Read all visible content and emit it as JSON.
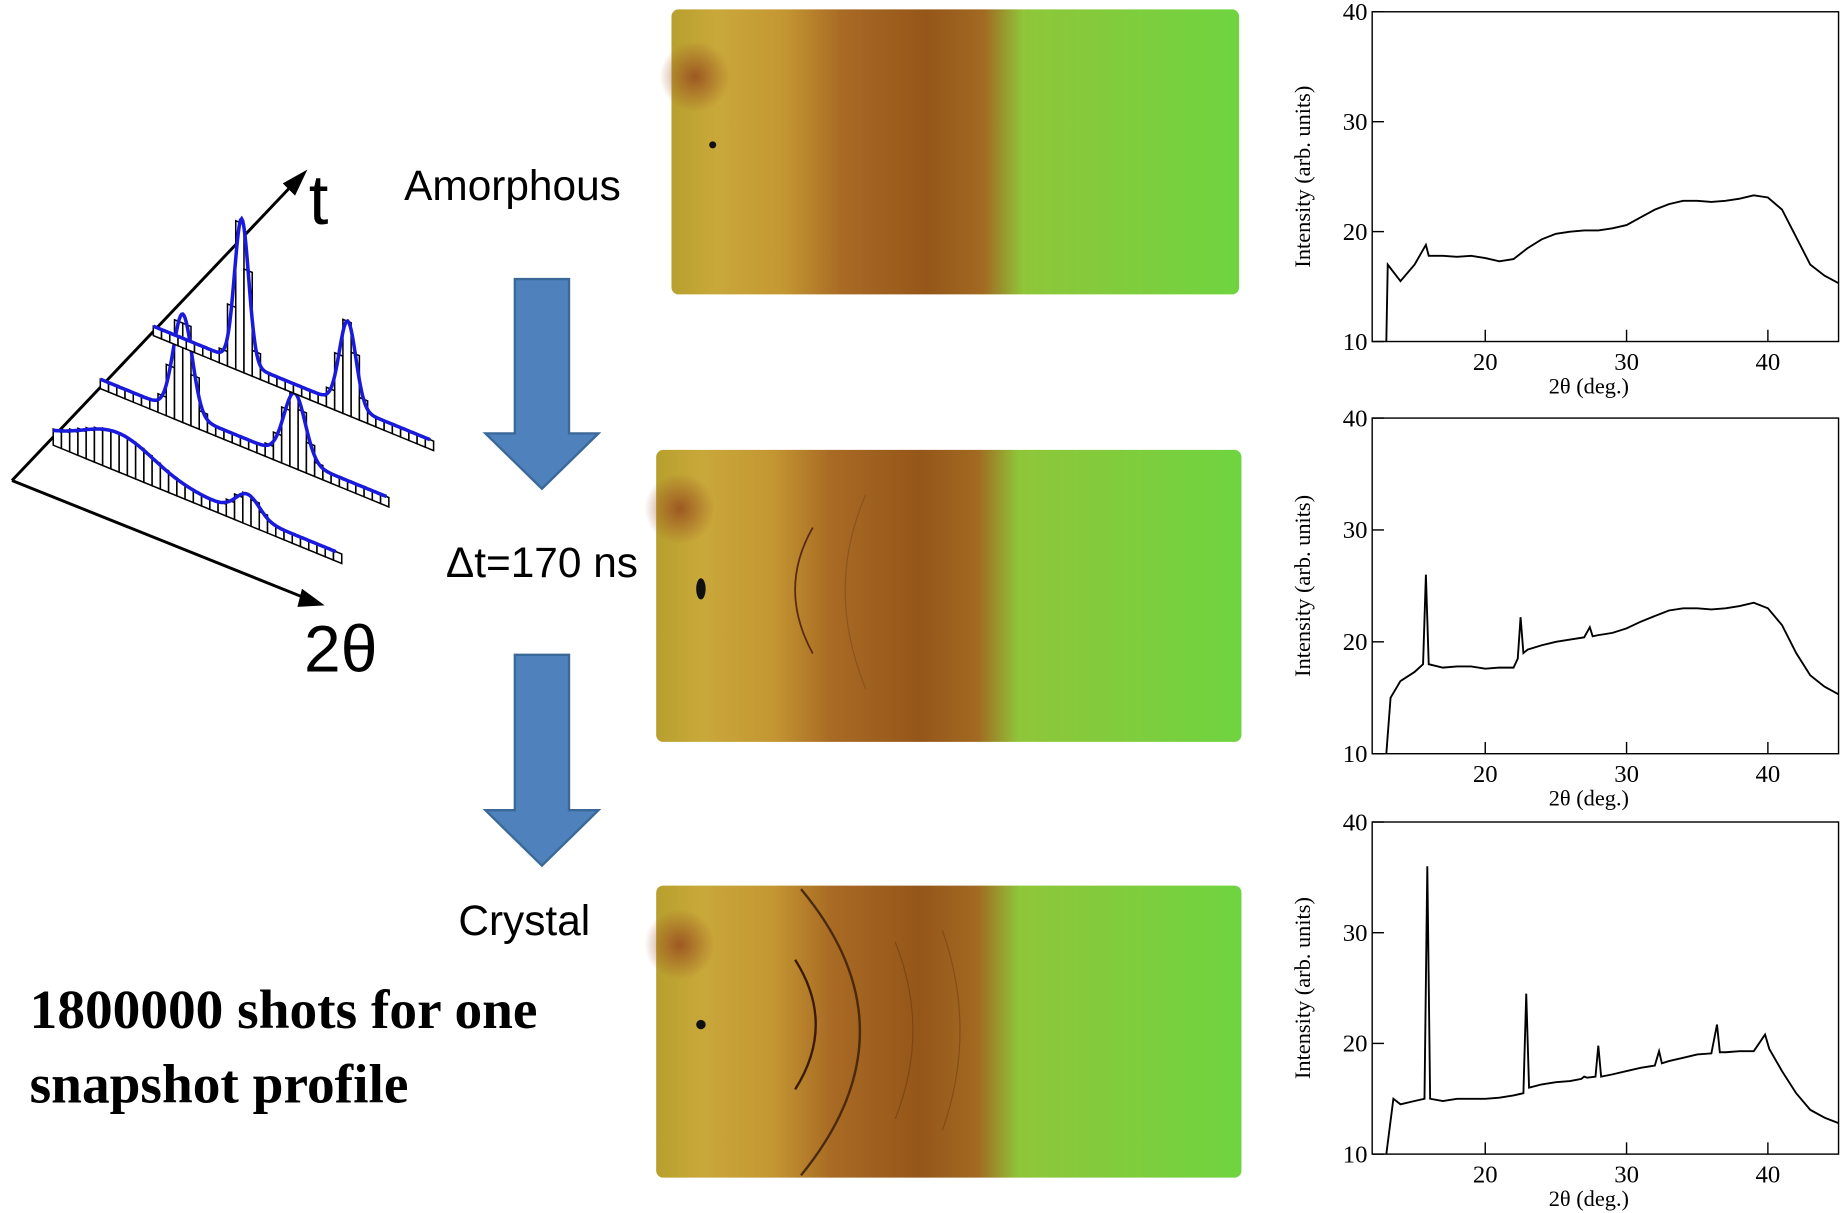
{
  "diagram": {
    "axis_t": "t",
    "axis_2theta": "2θ",
    "stage_start": "Amorphous",
    "interval": "Δt=170 ns",
    "stage_end": "Crystal",
    "caption_line1": "1800000 shots for one",
    "caption_line2": "snapshot profile"
  },
  "chart_data": [
    {
      "type": "line",
      "xlabel": "2θ (deg.)",
      "ylabel": "Intensity (arb. units)",
      "xlim": [
        12,
        45
      ],
      "ylim": [
        10,
        40
      ],
      "xticks": [
        20,
        30,
        40
      ],
      "yticks": [
        10,
        20,
        30,
        40
      ],
      "color": "#000000",
      "x": [
        13,
        13.1,
        14,
        15,
        15.8,
        16,
        17,
        18,
        19,
        20,
        21,
        22,
        23,
        24,
        25,
        26,
        27,
        28,
        29,
        30,
        31,
        32,
        33,
        34,
        35,
        36,
        37,
        38,
        39,
        40,
        41,
        42,
        43,
        44,
        45
      ],
      "values": [
        10,
        17,
        15.5,
        17,
        18.8,
        17.8,
        17.8,
        17.7,
        17.8,
        17.6,
        17.3,
        17.5,
        18.5,
        19.3,
        19.8,
        20,
        20.1,
        20.1,
        20.3,
        20.6,
        21.3,
        22,
        22.5,
        22.8,
        22.8,
        22.7,
        22.8,
        23,
        23.3,
        23.1,
        22,
        19.5,
        17,
        16,
        15.3
      ]
    },
    {
      "type": "line",
      "xlabel": "2θ (deg.)",
      "ylabel": "Intensity (arb. units)",
      "xlim": [
        12,
        45
      ],
      "ylim": [
        10,
        40
      ],
      "xticks": [
        20,
        30,
        40
      ],
      "yticks": [
        10,
        20,
        30,
        40
      ],
      "color": "#000000",
      "x": [
        13,
        13.3,
        14,
        15,
        15.6,
        15.8,
        16,
        17,
        18,
        19,
        20,
        21,
        22,
        22.3,
        22.5,
        22.7,
        23,
        24,
        25,
        26,
        27,
        27.4,
        27.6,
        28,
        29,
        30,
        31,
        32,
        33,
        34,
        35,
        36,
        37,
        38,
        39,
        40,
        41,
        42,
        43,
        44,
        45
      ],
      "values": [
        10,
        15,
        16.5,
        17.3,
        18,
        26,
        18,
        17.7,
        17.8,
        17.8,
        17.6,
        17.7,
        17.7,
        18.5,
        22.2,
        19,
        19.3,
        19.7,
        20,
        20.2,
        20.4,
        21.3,
        20.5,
        20.6,
        20.8,
        21.2,
        21.8,
        22.3,
        22.8,
        23,
        23,
        22.9,
        23,
        23.2,
        23.5,
        23,
        21.5,
        19,
        17,
        16,
        15.3
      ]
    },
    {
      "type": "line",
      "xlabel": "2θ (deg.)",
      "ylabel": "Intensity (arb. units)",
      "xlim": [
        12,
        45
      ],
      "ylim": [
        10,
        40
      ],
      "xticks": [
        20,
        30,
        40
      ],
      "yticks": [
        10,
        20,
        30,
        40
      ],
      "color": "#000000",
      "x": [
        13,
        13.5,
        14,
        15,
        15.7,
        15.9,
        16.1,
        17,
        18,
        19,
        20,
        21,
        22,
        22.7,
        22.9,
        23.1,
        24,
        25,
        26,
        26.8,
        27,
        27.2,
        27.8,
        28,
        28.2,
        29,
        30,
        31,
        32,
        32.3,
        32.5,
        33,
        34,
        35,
        36,
        36.4,
        36.6,
        37,
        38,
        39,
        39.8,
        40.1,
        41,
        42,
        43,
        44,
        45
      ],
      "values": [
        10,
        15,
        14.5,
        14.8,
        15,
        36,
        15,
        14.8,
        15,
        15,
        15,
        15.1,
        15.3,
        15.5,
        24.5,
        16,
        16.3,
        16.5,
        16.6,
        16.8,
        17,
        16.9,
        17,
        19.8,
        17,
        17.2,
        17.5,
        17.8,
        18,
        19.3,
        18.2,
        18.4,
        18.7,
        19,
        19.1,
        21.7,
        19.2,
        19.2,
        19.3,
        19.3,
        20.8,
        19.5,
        17.5,
        15.5,
        14,
        13.3,
        12.8
      ]
    }
  ]
}
